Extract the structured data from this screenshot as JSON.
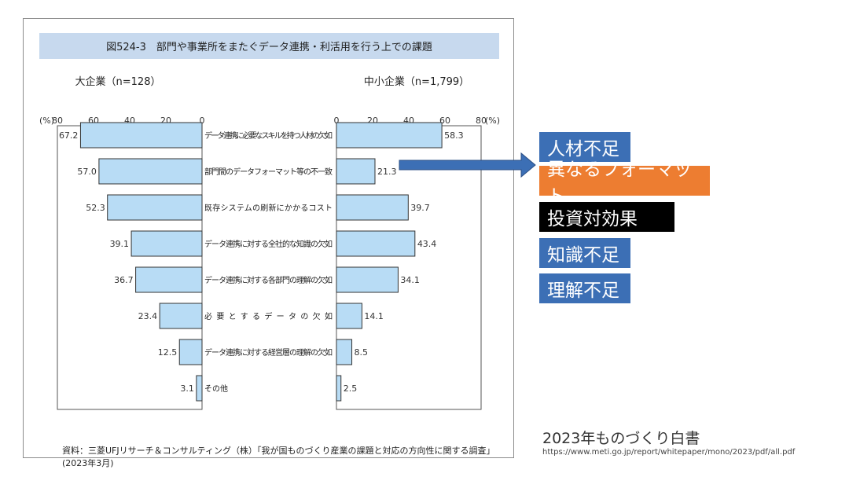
{
  "figure": {
    "title": "図524-3　部門や事業所をまたぐデータ連携・利活用を行う上での課題",
    "source": "資料：三菱UFJリサーチ＆コンサルティング（株）「我が国ものづくり産業の課題と対応の方向性に関する調査」(2023年3月)"
  },
  "chart_data": {
    "type": "bar",
    "orientation": "horizontal-butterfly",
    "unit": "(%)",
    "categories": [
      "データ連携に必要なスキルを持つ人材の欠如",
      "部門間のデータフォーマット等の不一致",
      "既存システムの刷新にかかるコスト",
      "データ連携に対する全社的な知識の欠如",
      "データ連携に対する各部門の理解の欠如",
      "必要とするデータの欠如",
      "データ連携に対する経営層の理解の欠如",
      "その他"
    ],
    "series": [
      {
        "name": "大企業（n=128）",
        "values": [
          "67.2",
          "57.0",
          "52.3",
          "39.1",
          "36.7",
          "23.4",
          "12.5",
          "3.1"
        ]
      },
      {
        "name": "中小企業（n=1,799）",
        "values": [
          "58.3",
          "21.3",
          "39.7",
          "43.4",
          "34.1",
          "14.1",
          "8.5",
          "2.5"
        ]
      }
    ],
    "xlim": [
      0,
      80
    ],
    "ticks": [
      "80",
      "60",
      "40",
      "20",
      "0"
    ],
    "ticks_right": [
      "0",
      "20",
      "40",
      "60",
      "80"
    ],
    "bar_color": "#b8dcf5"
  },
  "tags": [
    {
      "label": "人材不足",
      "color": "#3c6fb5"
    },
    {
      "label": "異なるフォーマット",
      "color": "#ed7d31"
    },
    {
      "label": "投資対効果",
      "color": "#000000"
    },
    {
      "label": "知識不足",
      "color": "#3c6fb5"
    },
    {
      "label": "理解不足",
      "color": "#3c6fb5"
    }
  ],
  "arrow_color": "#3c6fb5",
  "book": {
    "title": "2023年ものづくり白書",
    "url": "https://www.meti.go.jp/report/whitepaper/mono/2023/pdf/all.pdf"
  }
}
